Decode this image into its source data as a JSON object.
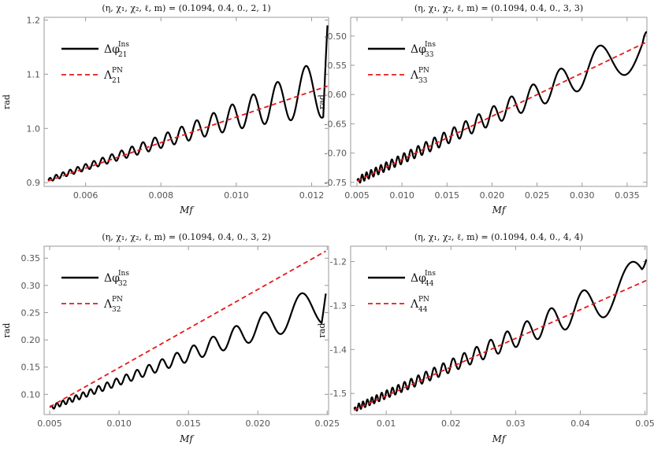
{
  "chart_data": [
    {
      "type": "line",
      "title": "(η, χ₁, χ₂, ℓ, m) = (0.1094, 0.4, 0., 2, 1)",
      "xlabel": "Mf",
      "ylabel": "rad",
      "xlim": [
        0.0049,
        0.01245
      ],
      "ylim": [
        0.893,
        1.205
      ],
      "xticks": [
        0.006,
        0.008,
        0.01,
        0.012
      ],
      "xtick_labels": [
        "0.006",
        "0.008",
        "0.010",
        "0.012"
      ],
      "yticks": [
        0.9,
        1.0,
        1.1,
        1.2
      ],
      "ytick_labels": [
        "0.9",
        "1.0",
        "1.1",
        "1.2"
      ],
      "legend": "top-left",
      "grid": false,
      "series": [
        {
          "name": "Δφ21Ins",
          "legend_main": "Δφ",
          "legend_sub": "21",
          "legend_sup": "Ins",
          "color": "#000000",
          "style": "solid",
          "x_range": [
            0.005,
            0.01242
          ],
          "trend": {
            "x": [
              0.005,
              0.01242
            ],
            "y": [
              0.905,
              1.08
            ]
          },
          "osc_amp": [
            0.004,
            0.06
          ],
          "osc_periods": [
            0.00017,
            0.00094
          ],
          "end_values": [
            0.905,
            1.19
          ]
        },
        {
          "name": "Λ21PN",
          "legend_main": "Λ",
          "legend_sub": "21",
          "legend_sup": "PN",
          "color": "#e31a1c",
          "style": "dashed",
          "x": [
            0.005,
            0.01242
          ],
          "y": [
            0.903,
            1.078
          ]
        }
      ]
    },
    {
      "type": "line",
      "title": "(η, χ₁, χ₂, ℓ, m) = (0.1094, 0.4, 0., 3, 3)",
      "xlabel": "Mf",
      "ylabel": "rad",
      "xlim": [
        0.0043,
        0.0372
      ],
      "ylim": [
        -0.757,
        -0.468
      ],
      "xticks": [
        0.005,
        0.01,
        0.015,
        0.02,
        0.025,
        0.03,
        0.035
      ],
      "xtick_labels": [
        "0.005",
        "0.010",
        "0.015",
        "0.020",
        "0.025",
        "0.030",
        "0.035"
      ],
      "yticks": [
        -0.75,
        -0.7,
        -0.65,
        -0.6,
        -0.55,
        -0.5
      ],
      "ytick_labels": [
        "-0.75",
        "-0.70",
        "-0.65",
        "-0.60",
        "-0.55",
        "-0.50"
      ],
      "legend": "top-left",
      "grid": false,
      "series": [
        {
          "name": "Δφ33Ins",
          "legend_main": "Δφ",
          "legend_sub": "33",
          "legend_sup": "Ins",
          "color": "#000000",
          "style": "solid",
          "x_range": [
            0.005,
            0.0372
          ],
          "trend": {
            "x": [
              0.005,
              0.0372
            ],
            "y": [
              -0.747,
              -0.51
            ]
          },
          "osc_amp": [
            0.006,
            0.045
          ],
          "osc_periods": [
            0.00045,
            0.0085
          ],
          "end_values": [
            -0.747,
            -0.493
          ]
        },
        {
          "name": "Λ33PN",
          "legend_main": "Λ",
          "legend_sub": "33",
          "legend_sup": "PN",
          "color": "#e31a1c",
          "style": "dashed",
          "x": [
            0.005,
            0.0372
          ],
          "y": [
            -0.748,
            -0.51
          ]
        }
      ]
    },
    {
      "type": "line",
      "title": "(η, χ₁, χ₂, ℓ, m) = (0.1094, 0.4, 0., 3, 2)",
      "xlabel": "Mf",
      "ylabel": "rad",
      "xlim": [
        0.0046,
        0.0251
      ],
      "ylim": [
        0.063,
        0.372
      ],
      "xticks": [
        0.005,
        0.01,
        0.015,
        0.02,
        0.025
      ],
      "xtick_labels": [
        "0.005",
        "0.010",
        "0.015",
        "0.020",
        "0.025"
      ],
      "yticks": [
        0.1,
        0.15,
        0.2,
        0.25,
        0.3,
        0.35
      ],
      "ytick_labels": [
        "0.10",
        "0.15",
        "0.20",
        "0.25",
        "0.30",
        "0.35"
      ],
      "legend": "top-left",
      "grid": false,
      "series": [
        {
          "name": "Δφ32Ins",
          "legend_main": "Δφ",
          "legend_sub": "32",
          "legend_sup": "Ins",
          "color": "#000000",
          "style": "solid",
          "x_range": [
            0.005,
            0.0249
          ],
          "trend": {
            "x": [
              0.005,
              0.0249
            ],
            "y": [
              0.075,
              0.27
            ]
          },
          "osc_amp": [
            0.004,
            0.04
          ],
          "osc_periods": [
            0.0004,
            0.0038
          ],
          "end_values": [
            0.077,
            0.285
          ]
        },
        {
          "name": "Λ32PN",
          "legend_main": "Λ",
          "legend_sub": "32",
          "legend_sup": "PN",
          "color": "#e31a1c",
          "style": "dashed",
          "x": [
            0.005,
            0.0249
          ],
          "y": [
            0.077,
            0.363
          ]
        }
      ]
    },
    {
      "type": "line",
      "title": "(η, χ₁, χ₂, ℓ, m) = (0.1094, 0.4, 0., 4, 4)",
      "xlabel": "Mf",
      "ylabel": "rad",
      "xlim": [
        0.0045,
        0.0503
      ],
      "ylim": [
        -1.548,
        -1.165
      ],
      "xticks": [
        0.01,
        0.02,
        0.03,
        0.04,
        0.05
      ],
      "xtick_labels": [
        "0.01",
        "0.02",
        "0.03",
        "0.04",
        "0.05"
      ],
      "yticks": [
        -1.5,
        -1.4,
        -1.3,
        -1.2
      ],
      "ytick_labels": [
        "-1.5",
        "-1.4",
        "-1.3",
        "-1.2"
      ],
      "legend": "top-left",
      "grid": false,
      "series": [
        {
          "name": "Δφ44Ins",
          "legend_main": "Δφ",
          "legend_sub": "44",
          "legend_sup": "Ins",
          "color": "#000000",
          "style": "solid",
          "x_range": [
            0.005,
            0.0502
          ],
          "trend": {
            "x": [
              0.005,
              0.0502
            ],
            "y": [
              -1.535,
              -1.24
            ]
          },
          "osc_amp": [
            0.007,
            0.06
          ],
          "osc_periods": [
            0.0006,
            0.011
          ],
          "end_values": [
            -1.535,
            -1.195
          ]
        },
        {
          "name": "Λ44PN",
          "legend_main": "Λ",
          "legend_sub": "44",
          "legend_sup": "PN",
          "color": "#e31a1c",
          "style": "dashed",
          "x": [
            0.005,
            0.0502
          ],
          "y": [
            -1.538,
            -1.243
          ]
        }
      ]
    }
  ]
}
